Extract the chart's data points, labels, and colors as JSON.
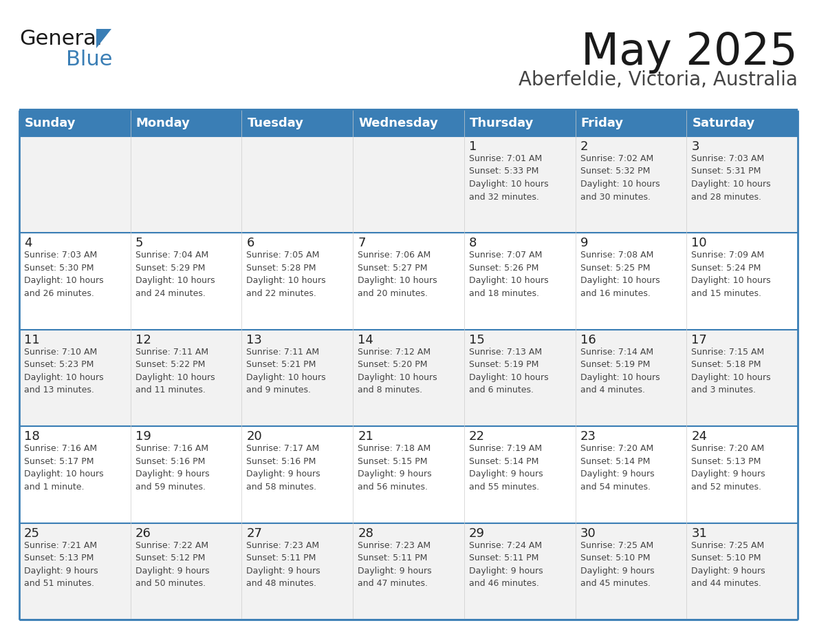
{
  "title": "May 2025",
  "subtitle": "Aberfeldie, Victoria, Australia",
  "days_of_week": [
    "Sunday",
    "Monday",
    "Tuesday",
    "Wednesday",
    "Thursday",
    "Friday",
    "Saturday"
  ],
  "header_bg": "#3A7EB5",
  "header_text": "#FFFFFF",
  "cell_bg_odd": "#F2F2F2",
  "cell_bg_even": "#FFFFFF",
  "cell_text_color": "#444444",
  "day_number_color": "#222222",
  "border_color": "#3A7EB5",
  "row_line_color": "#3A7EB5",
  "title_color": "#1A1A1A",
  "subtitle_color": "#444444",
  "calendar_data": [
    [
      {
        "day": null,
        "info": ""
      },
      {
        "day": null,
        "info": ""
      },
      {
        "day": null,
        "info": ""
      },
      {
        "day": null,
        "info": ""
      },
      {
        "day": 1,
        "info": "Sunrise: 7:01 AM\nSunset: 5:33 PM\nDaylight: 10 hours\nand 32 minutes."
      },
      {
        "day": 2,
        "info": "Sunrise: 7:02 AM\nSunset: 5:32 PM\nDaylight: 10 hours\nand 30 minutes."
      },
      {
        "day": 3,
        "info": "Sunrise: 7:03 AM\nSunset: 5:31 PM\nDaylight: 10 hours\nand 28 minutes."
      }
    ],
    [
      {
        "day": 4,
        "info": "Sunrise: 7:03 AM\nSunset: 5:30 PM\nDaylight: 10 hours\nand 26 minutes."
      },
      {
        "day": 5,
        "info": "Sunrise: 7:04 AM\nSunset: 5:29 PM\nDaylight: 10 hours\nand 24 minutes."
      },
      {
        "day": 6,
        "info": "Sunrise: 7:05 AM\nSunset: 5:28 PM\nDaylight: 10 hours\nand 22 minutes."
      },
      {
        "day": 7,
        "info": "Sunrise: 7:06 AM\nSunset: 5:27 PM\nDaylight: 10 hours\nand 20 minutes."
      },
      {
        "day": 8,
        "info": "Sunrise: 7:07 AM\nSunset: 5:26 PM\nDaylight: 10 hours\nand 18 minutes."
      },
      {
        "day": 9,
        "info": "Sunrise: 7:08 AM\nSunset: 5:25 PM\nDaylight: 10 hours\nand 16 minutes."
      },
      {
        "day": 10,
        "info": "Sunrise: 7:09 AM\nSunset: 5:24 PM\nDaylight: 10 hours\nand 15 minutes."
      }
    ],
    [
      {
        "day": 11,
        "info": "Sunrise: 7:10 AM\nSunset: 5:23 PM\nDaylight: 10 hours\nand 13 minutes."
      },
      {
        "day": 12,
        "info": "Sunrise: 7:11 AM\nSunset: 5:22 PM\nDaylight: 10 hours\nand 11 minutes."
      },
      {
        "day": 13,
        "info": "Sunrise: 7:11 AM\nSunset: 5:21 PM\nDaylight: 10 hours\nand 9 minutes."
      },
      {
        "day": 14,
        "info": "Sunrise: 7:12 AM\nSunset: 5:20 PM\nDaylight: 10 hours\nand 8 minutes."
      },
      {
        "day": 15,
        "info": "Sunrise: 7:13 AM\nSunset: 5:19 PM\nDaylight: 10 hours\nand 6 minutes."
      },
      {
        "day": 16,
        "info": "Sunrise: 7:14 AM\nSunset: 5:19 PM\nDaylight: 10 hours\nand 4 minutes."
      },
      {
        "day": 17,
        "info": "Sunrise: 7:15 AM\nSunset: 5:18 PM\nDaylight: 10 hours\nand 3 minutes."
      }
    ],
    [
      {
        "day": 18,
        "info": "Sunrise: 7:16 AM\nSunset: 5:17 PM\nDaylight: 10 hours\nand 1 minute."
      },
      {
        "day": 19,
        "info": "Sunrise: 7:16 AM\nSunset: 5:16 PM\nDaylight: 9 hours\nand 59 minutes."
      },
      {
        "day": 20,
        "info": "Sunrise: 7:17 AM\nSunset: 5:16 PM\nDaylight: 9 hours\nand 58 minutes."
      },
      {
        "day": 21,
        "info": "Sunrise: 7:18 AM\nSunset: 5:15 PM\nDaylight: 9 hours\nand 56 minutes."
      },
      {
        "day": 22,
        "info": "Sunrise: 7:19 AM\nSunset: 5:14 PM\nDaylight: 9 hours\nand 55 minutes."
      },
      {
        "day": 23,
        "info": "Sunrise: 7:20 AM\nSunset: 5:14 PM\nDaylight: 9 hours\nand 54 minutes."
      },
      {
        "day": 24,
        "info": "Sunrise: 7:20 AM\nSunset: 5:13 PM\nDaylight: 9 hours\nand 52 minutes."
      }
    ],
    [
      {
        "day": 25,
        "info": "Sunrise: 7:21 AM\nSunset: 5:13 PM\nDaylight: 9 hours\nand 51 minutes."
      },
      {
        "day": 26,
        "info": "Sunrise: 7:22 AM\nSunset: 5:12 PM\nDaylight: 9 hours\nand 50 minutes."
      },
      {
        "day": 27,
        "info": "Sunrise: 7:23 AM\nSunset: 5:11 PM\nDaylight: 9 hours\nand 48 minutes."
      },
      {
        "day": 28,
        "info": "Sunrise: 7:23 AM\nSunset: 5:11 PM\nDaylight: 9 hours\nand 47 minutes."
      },
      {
        "day": 29,
        "info": "Sunrise: 7:24 AM\nSunset: 5:11 PM\nDaylight: 9 hours\nand 46 minutes."
      },
      {
        "day": 30,
        "info": "Sunrise: 7:25 AM\nSunset: 5:10 PM\nDaylight: 9 hours\nand 45 minutes."
      },
      {
        "day": 31,
        "info": "Sunrise: 7:25 AM\nSunset: 5:10 PM\nDaylight: 9 hours\nand 44 minutes."
      }
    ]
  ],
  "figsize": [
    11.88,
    9.18
  ],
  "dpi": 100
}
